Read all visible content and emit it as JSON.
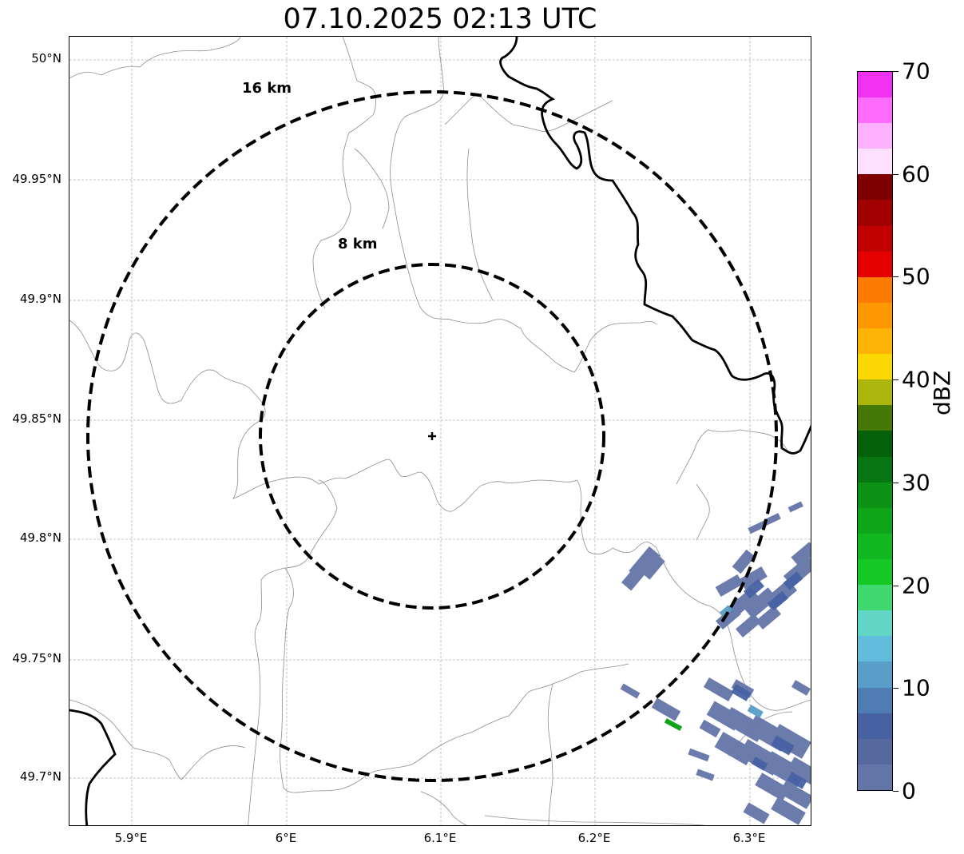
{
  "title": "07.10.2025 02:13 UTC",
  "map": {
    "lon_ticks": [
      "5.9°E",
      "6°E",
      "6.1°E",
      "6.2°E",
      "6.3°E"
    ],
    "lat_ticks": [
      "50°N",
      "49.95°N",
      "49.9°N",
      "49.85°N",
      "49.8°N",
      "49.75°N",
      "49.7°N"
    ],
    "rings": [
      {
        "label": "16 km",
        "radius_km": 16
      },
      {
        "label": "8 km",
        "radius_km": 8
      }
    ],
    "center_marker": "radar-site-plus-icon",
    "grid": true
  },
  "colorbar": {
    "label": "dBZ",
    "ticks": [
      "0",
      "10",
      "20",
      "30",
      "40",
      "50",
      "60",
      "70"
    ],
    "colors": [
      "#6476a8",
      "#56699f",
      "#4761a3",
      "#4f7db3",
      "#589ec8",
      "#62bcdc",
      "#62d6c6",
      "#3ed86f",
      "#14c825",
      "#11b71e",
      "#0fa519",
      "#0c9316",
      "#087513",
      "#056109",
      "#467808",
      "#acb50c",
      "#fbd802",
      "#fdb404",
      "#fd9803",
      "#fe7b01",
      "#e50000",
      "#c10000",
      "#a10000",
      "#7f0000",
      "#ffdfff",
      "#fdb0fd",
      "#fe6bfd",
      "#f232f2"
    ]
  }
}
